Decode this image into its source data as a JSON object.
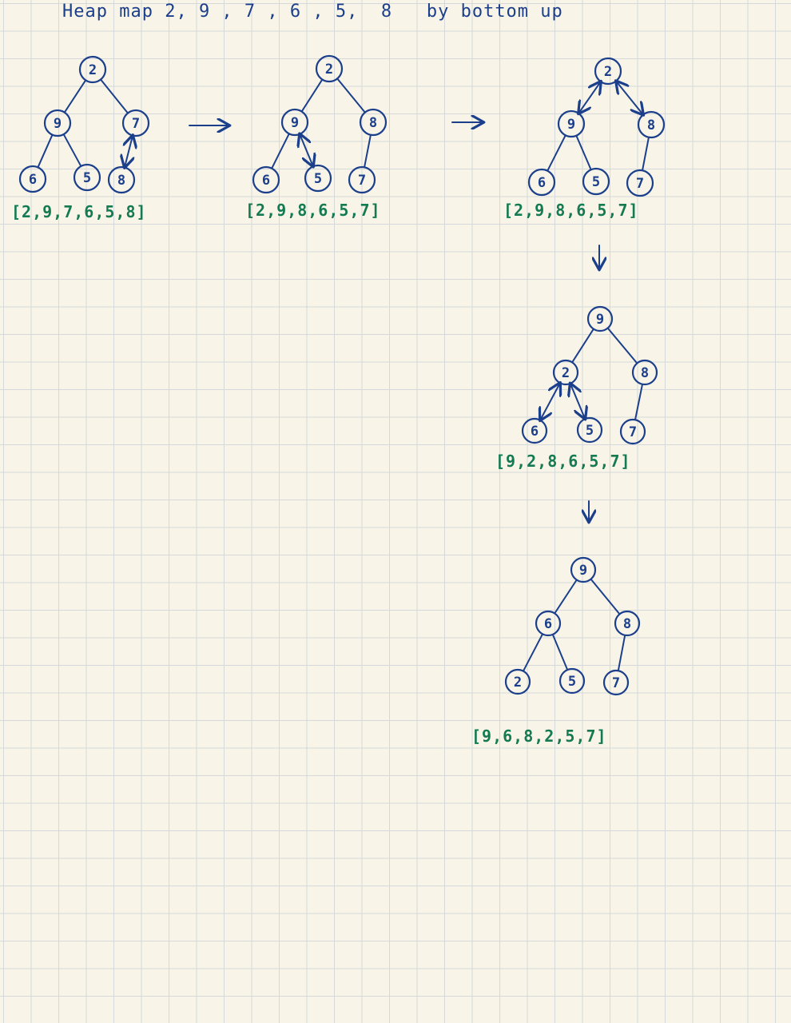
{
  "title": "Heap map 2, 9 , 7 , 6 , 5,  8   by bottom up",
  "colors": {
    "ink": "#1c3f8c",
    "array_ink": "#137a52",
    "paper": "#f8f5e8",
    "grid": "#d6d9dc"
  },
  "steps": [
    {
      "nodes": [
        "2",
        "9",
        "7",
        "6",
        "5",
        "8"
      ],
      "array": "[2,9,7,6,5,8]",
      "swap": [
        "7",
        "8"
      ]
    },
    {
      "nodes": [
        "2",
        "9",
        "8",
        "6",
        "5",
        "7"
      ],
      "array": "[2,9,8,6,5,7]",
      "swap": [
        "9",
        "5"
      ]
    },
    {
      "nodes": [
        "2",
        "9",
        "8",
        "6",
        "5",
        "7"
      ],
      "array": "[2,9,8,6,5,7]",
      "swap": [
        "2",
        "9",
        "8"
      ]
    },
    {
      "nodes": [
        "9",
        "2",
        "8",
        "6",
        "5",
        "7"
      ],
      "array": "[9,2,8,6,5,7]",
      "swap": [
        "2",
        "6",
        "5"
      ]
    },
    {
      "nodes": [
        "9",
        "6",
        "8",
        "2",
        "5",
        "7"
      ],
      "array": "[9,6,8,2,5,7]",
      "swap": []
    }
  ]
}
